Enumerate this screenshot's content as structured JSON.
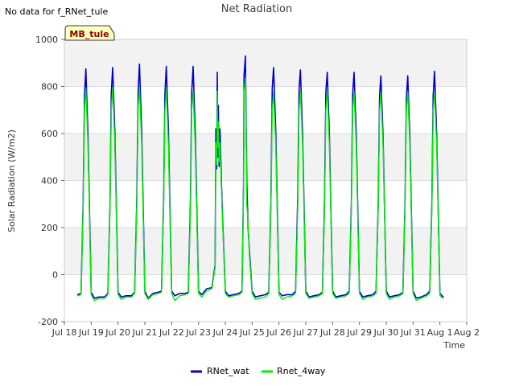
{
  "no_data_note": "No data for f_RNet_tule",
  "badge_label": "MB_tule",
  "colors": {
    "rnet_wat": "#0000cc",
    "rnet_4way": "#00ee00",
    "band": "#f2f2f2",
    "badge_fill": "#ffffc0"
  },
  "chart_data": {
    "type": "line",
    "title": "Net Radiation",
    "xlabel": "Time",
    "ylabel": "Solar Radiation (W/m2)",
    "ylim": [
      -200,
      1000
    ],
    "yticks": [
      -200,
      0,
      200,
      400,
      600,
      800,
      1000
    ],
    "xlim_days": [
      0,
      15
    ],
    "xticks": [
      {
        "day": 0,
        "label": "Jul 18"
      },
      {
        "day": 1,
        "label": "Jul 19"
      },
      {
        "day": 2,
        "label": "Jul 20"
      },
      {
        "day": 3,
        "label": "Jul 21"
      },
      {
        "day": 4,
        "label": "Jul 22"
      },
      {
        "day": 5,
        "label": "Jul 23"
      },
      {
        "day": 6,
        "label": "Jul 24"
      },
      {
        "day": 7,
        "label": "Jul 25"
      },
      {
        "day": 8,
        "label": "Jul 26"
      },
      {
        "day": 9,
        "label": "Jul 27"
      },
      {
        "day": 10,
        "label": "Jul 28"
      },
      {
        "day": 11,
        "label": "Jul 29"
      },
      {
        "day": 12,
        "label": "Jul 30"
      },
      {
        "day": 13,
        "label": "Jul 31"
      },
      {
        "day": 14,
        "label": "Aug 1"
      },
      {
        "day": 15,
        "label": "Aug 2"
      }
    ],
    "legend_position": "bottom-center",
    "series": [
      {
        "name": "RNet_wat",
        "color": "#0000cc",
        "x": [
          0.5,
          0.62,
          0.7,
          0.75,
          0.8,
          0.88,
          1.0,
          1.12,
          1.3,
          1.5,
          1.62,
          1.7,
          1.75,
          1.8,
          1.88,
          2.0,
          2.12,
          2.3,
          2.5,
          2.62,
          2.7,
          2.75,
          2.8,
          2.88,
          3.0,
          3.12,
          3.3,
          3.5,
          3.62,
          3.7,
          3.75,
          3.8,
          3.88,
          4.0,
          4.12,
          4.3,
          4.5,
          4.62,
          4.7,
          4.75,
          4.8,
          4.88,
          5.0,
          5.12,
          5.3,
          5.5,
          5.62,
          5.65,
          5.68,
          5.7,
          5.72,
          5.74,
          5.77,
          5.8,
          5.88,
          6.0,
          6.12,
          6.3,
          6.5,
          6.62,
          6.65,
          6.68,
          6.7,
          6.72,
          6.75,
          6.78,
          6.8,
          6.85,
          6.9,
          7.0,
          7.12,
          7.3,
          7.5,
          7.62,
          7.7,
          7.75,
          7.8,
          7.88,
          8.0,
          8.12,
          8.3,
          8.5,
          8.62,
          8.7,
          8.75,
          8.8,
          8.88,
          9.0,
          9.12,
          9.3,
          9.5,
          9.62,
          9.7,
          9.75,
          9.8,
          9.88,
          10.0,
          10.12,
          10.3,
          10.5,
          10.62,
          10.7,
          10.75,
          10.8,
          10.88,
          11.0,
          11.12,
          11.3,
          11.5,
          11.62,
          11.7,
          11.75,
          11.8,
          11.88,
          12.0,
          12.12,
          12.3,
          12.5,
          12.62,
          12.7,
          12.75,
          12.8,
          12.88,
          13.0,
          13.12,
          13.3,
          13.5,
          13.62,
          13.7,
          13.75,
          13.8,
          13.88,
          14.0,
          14.12
        ],
        "y": [
          -85,
          -80,
          300,
          760,
          875,
          600,
          -75,
          -100,
          -95,
          -95,
          -80,
          300,
          770,
          880,
          610,
          -75,
          -95,
          -90,
          -90,
          -75,
          320,
          780,
          895,
          620,
          -70,
          -100,
          -80,
          -75,
          -70,
          310,
          770,
          885,
          615,
          -70,
          -90,
          -80,
          -80,
          -75,
          320,
          780,
          885,
          600,
          -70,
          -85,
          -60,
          -55,
          40,
          620,
          450,
          860,
          500,
          720,
          460,
          620,
          300,
          -70,
          -90,
          -85,
          -80,
          -70,
          150,
          400,
          850,
          880,
          930,
          600,
          400,
          200,
          100,
          -70,
          -95,
          -90,
          -85,
          -75,
          320,
          790,
          880,
          610,
          -75,
          -90,
          -85,
          -85,
          -70,
          330,
          790,
          870,
          600,
          -70,
          -95,
          -90,
          -85,
          -75,
          320,
          780,
          860,
          600,
          -70,
          -95,
          -90,
          -85,
          -70,
          310,
          770,
          860,
          600,
          -70,
          -95,
          -90,
          -85,
          -70,
          300,
          760,
          845,
          590,
          -70,
          -95,
          -90,
          -85,
          -75,
          300,
          750,
          845,
          590,
          -70,
          -100,
          -95,
          -85,
          -70,
          310,
          760,
          865,
          590,
          -80,
          -95
        ]
      },
      {
        "name": "Rnet_4way",
        "color": "#00ee00",
        "x": [
          0.5,
          0.62,
          0.7,
          0.75,
          0.8,
          0.88,
          1.0,
          1.12,
          1.3,
          1.5,
          1.62,
          1.7,
          1.75,
          1.8,
          1.88,
          2.0,
          2.12,
          2.3,
          2.5,
          2.62,
          2.7,
          2.75,
          2.8,
          2.88,
          3.0,
          3.12,
          3.3,
          3.5,
          3.62,
          3.7,
          3.75,
          3.8,
          3.88,
          4.0,
          4.12,
          4.3,
          4.5,
          4.62,
          4.7,
          4.75,
          4.8,
          4.88,
          5.0,
          5.12,
          5.3,
          5.5,
          5.62,
          5.65,
          5.68,
          5.7,
          5.72,
          5.74,
          5.77,
          5.8,
          5.88,
          6.0,
          6.12,
          6.3,
          6.5,
          6.62,
          6.65,
          6.68,
          6.7,
          6.72,
          6.75,
          6.78,
          6.8,
          6.85,
          6.9,
          7.0,
          7.12,
          7.3,
          7.5,
          7.62,
          7.7,
          7.75,
          7.8,
          7.88,
          8.0,
          8.12,
          8.3,
          8.5,
          8.62,
          8.7,
          8.75,
          8.8,
          8.88,
          9.0,
          9.12,
          9.3,
          9.5,
          9.62,
          9.7,
          9.75,
          9.8,
          9.88,
          10.0,
          10.12,
          10.3,
          10.5,
          10.62,
          10.7,
          10.75,
          10.8,
          10.88,
          11.0,
          11.12,
          11.3,
          11.5,
          11.62,
          11.7,
          11.75,
          11.8,
          11.88,
          12.0,
          12.12,
          12.3,
          12.5,
          12.62,
          12.7,
          12.75,
          12.8,
          12.88,
          13.0,
          13.12,
          13.3,
          13.5,
          13.62,
          13.7,
          13.75,
          13.8,
          13.88,
          14.0,
          14.12
        ],
        "y": [
          -90,
          -85,
          280,
          700,
          790,
          550,
          -85,
          -110,
          -100,
          -100,
          -85,
          280,
          700,
          795,
          560,
          -85,
          -105,
          -95,
          -95,
          -80,
          290,
          710,
          795,
          560,
          -80,
          -105,
          -85,
          -80,
          -75,
          280,
          700,
          790,
          550,
          -80,
          -110,
          -90,
          -85,
          -80,
          280,
          700,
          780,
          540,
          -80,
          -95,
          -70,
          -60,
          30,
          560,
          470,
          780,
          540,
          650,
          480,
          560,
          280,
          -80,
          -95,
          -90,
          -85,
          -75,
          140,
          380,
          780,
          800,
          835,
          560,
          300,
          220,
          80,
          -80,
          -105,
          -100,
          -95,
          -80,
          280,
          700,
          775,
          550,
          -85,
          -105,
          -95,
          -90,
          -80,
          280,
          700,
          780,
          550,
          -80,
          -100,
          -95,
          -90,
          -80,
          280,
          700,
          780,
          550,
          -80,
          -100,
          -95,
          -90,
          -80,
          280,
          700,
          775,
          550,
          -80,
          -105,
          -95,
          -90,
          -80,
          280,
          700,
          775,
          550,
          -80,
          -105,
          -95,
          -90,
          -80,
          280,
          700,
          775,
          550,
          -80,
          -110,
          -100,
          -90,
          -80,
          280,
          700,
          770,
          550,
          -90,
          -100
        ]
      }
    ]
  }
}
